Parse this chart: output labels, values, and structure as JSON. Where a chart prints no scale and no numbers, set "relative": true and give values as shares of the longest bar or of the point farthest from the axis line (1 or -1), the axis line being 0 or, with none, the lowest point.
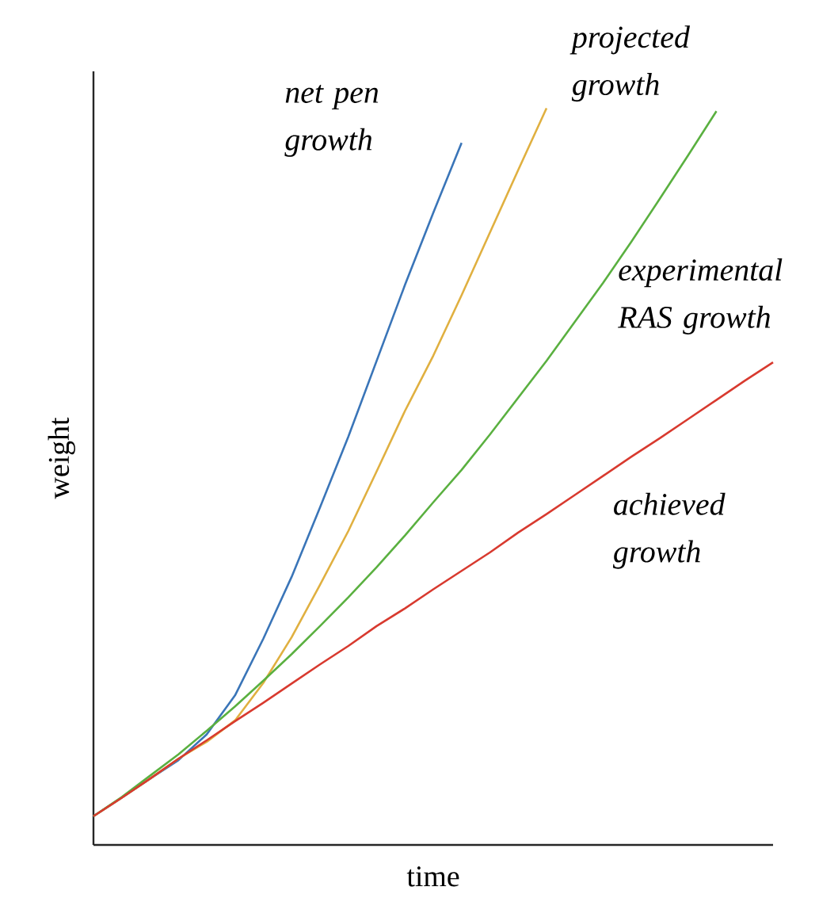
{
  "chart_data": {
    "type": "line",
    "xlabel": "time",
    "ylabel": "weight",
    "relative": true,
    "categories": [
      null,
      null,
      null,
      null,
      null,
      null,
      null,
      null,
      null,
      null,
      null,
      null,
      null,
      null,
      null,
      null,
      null,
      null,
      null,
      null,
      null,
      null,
      null,
      null,
      null
    ],
    "series": [
      {
        "name": "net pen growth",
        "color": "#3a75b8",
        "values": [
          0.039,
          0.064,
          0.09,
          0.115,
          0.15,
          0.203,
          0.28,
          0.364,
          0.458,
          0.554,
          0.657,
          0.76,
          0.858,
          0.953,
          null,
          null,
          null,
          null,
          null,
          null,
          null,
          null,
          null,
          null,
          null
        ]
      },
      {
        "name": "projected growth",
        "color": "#e0b040",
        "values": [
          0.039,
          0.064,
          0.09,
          0.117,
          0.14,
          0.169,
          0.22,
          0.282,
          0.353,
          0.426,
          0.507,
          0.589,
          0.664,
          0.746,
          0.831,
          0.916,
          1,
          null,
          null,
          null,
          null,
          null,
          null,
          null,
          null
        ]
      },
      {
        "name": "experimental RAS growth",
        "color": "#5ab040",
        "values": [
          0.039,
          0.065,
          0.094,
          0.123,
          0.155,
          0.188,
          0.223,
          0.259,
          0.297,
          0.336,
          0.377,
          0.42,
          0.465,
          0.509,
          0.557,
          0.607,
          0.657,
          0.71,
          0.763,
          0.819,
          0.877,
          0.936,
          0.996,
          null,
          null
        ]
      },
      {
        "name": "achieved growth",
        "color": "#d83a2f",
        "values": [
          0.039,
          0.064,
          0.09,
          0.117,
          0.142,
          0.168,
          0.193,
          0.219,
          0.245,
          0.27,
          0.297,
          0.321,
          0.347,
          0.372,
          0.397,
          0.424,
          0.449,
          0.475,
          0.501,
          0.527,
          0.552,
          0.578,
          0.604,
          0.63,
          0.655
        ]
      }
    ]
  }
}
